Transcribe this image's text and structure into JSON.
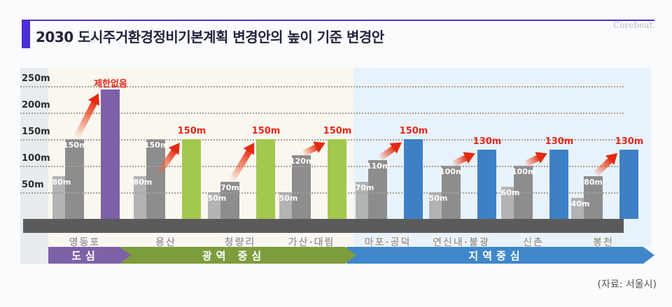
{
  "header": {
    "title": "2030 도시주거환경정비기본계획 변경안의 높이 기준 변경안",
    "watermark": "Corebeat."
  },
  "footer": {
    "source": "(자료: 서울시)"
  },
  "chart_data": {
    "type": "bar",
    "unit": "m",
    "axis": {
      "y_ticks": [
        250,
        200,
        150,
        100,
        50
      ],
      "y_tick_labels": [
        "250m",
        "200m",
        "150m",
        "100m",
        "50m"
      ],
      "y_range": [
        0,
        260
      ],
      "grid": "dotted-horizontal"
    },
    "groups": [
      {
        "district": "영등포",
        "section": "도심",
        "before": [
          {
            "value": 80,
            "label": "80m"
          },
          {
            "value": 150,
            "label": "150m"
          }
        ],
        "after": {
          "value": null,
          "label": "제한없음",
          "unlimited": true
        }
      },
      {
        "district": "용산",
        "section": "광역 중심",
        "before": [
          {
            "value": 80,
            "label": "80m"
          },
          {
            "value": 150,
            "label": "150m"
          }
        ],
        "after": {
          "value": 150,
          "label": "150m",
          "unlimited": false
        }
      },
      {
        "district": "청량리",
        "section": "광역 중심",
        "before": [
          {
            "value": 50,
            "label": "50m"
          },
          {
            "value": 70,
            "label": "70m"
          }
        ],
        "after": {
          "value": 150,
          "label": "150m",
          "unlimited": false
        }
      },
      {
        "district": "가산·대림",
        "section": "광역 중심",
        "before": [
          {
            "value": 50,
            "label": "50m"
          },
          {
            "value": 120,
            "label": "120m"
          }
        ],
        "after": {
          "value": 150,
          "label": "150m",
          "unlimited": false
        }
      },
      {
        "district": "마포·공덕",
        "section": "지역중심",
        "before": [
          {
            "value": 70,
            "label": "70m"
          },
          {
            "value": 110,
            "label": "110m"
          }
        ],
        "after": {
          "value": 150,
          "label": "150m",
          "unlimited": false
        }
      },
      {
        "district": "연신내·불광",
        "section": "지역중심",
        "before": [
          {
            "value": 50,
            "label": "50m"
          },
          {
            "value": 100,
            "label": "100m"
          }
        ],
        "after": {
          "value": 130,
          "label": "130m",
          "unlimited": false
        }
      },
      {
        "district": "신촌",
        "section": "지역중심",
        "before": [
          {
            "value": 60,
            "label": "60m"
          },
          {
            "value": 100,
            "label": "100m"
          }
        ],
        "after": {
          "value": 130,
          "label": "130m",
          "unlimited": false
        }
      },
      {
        "district": "봉천",
        "section": "지역중심",
        "before": [
          {
            "value": 40,
            "label": "40m"
          },
          {
            "value": 80,
            "label": "80m"
          }
        ],
        "after": {
          "value": 130,
          "label": "130m",
          "unlimited": false
        }
      }
    ],
    "sections": [
      {
        "label": "도심",
        "band_color": "#7e62a8",
        "bar_color": "#7e60a8",
        "group_span": [
          0,
          0
        ]
      },
      {
        "label": "광역 중심",
        "band_color": "#7d9c3c",
        "bar_color": "#a3c84e",
        "group_span": [
          1,
          3
        ]
      },
      {
        "label": "지역중심",
        "band_color": "#3f87ca",
        "bar_color": "#3d80c6",
        "group_span": [
          4,
          7
        ]
      }
    ],
    "colors": {
      "bar_before_low": "#b3b3b3",
      "bar_before_high": "#8d8d8d",
      "increase_arrow": "#e6321f",
      "after_value_label": "#e7281b",
      "ground": "#5b5b5b",
      "background_left": "#e9ecee",
      "background_center": "#f9f7ef",
      "background_right": "#e8f2fa"
    }
  }
}
